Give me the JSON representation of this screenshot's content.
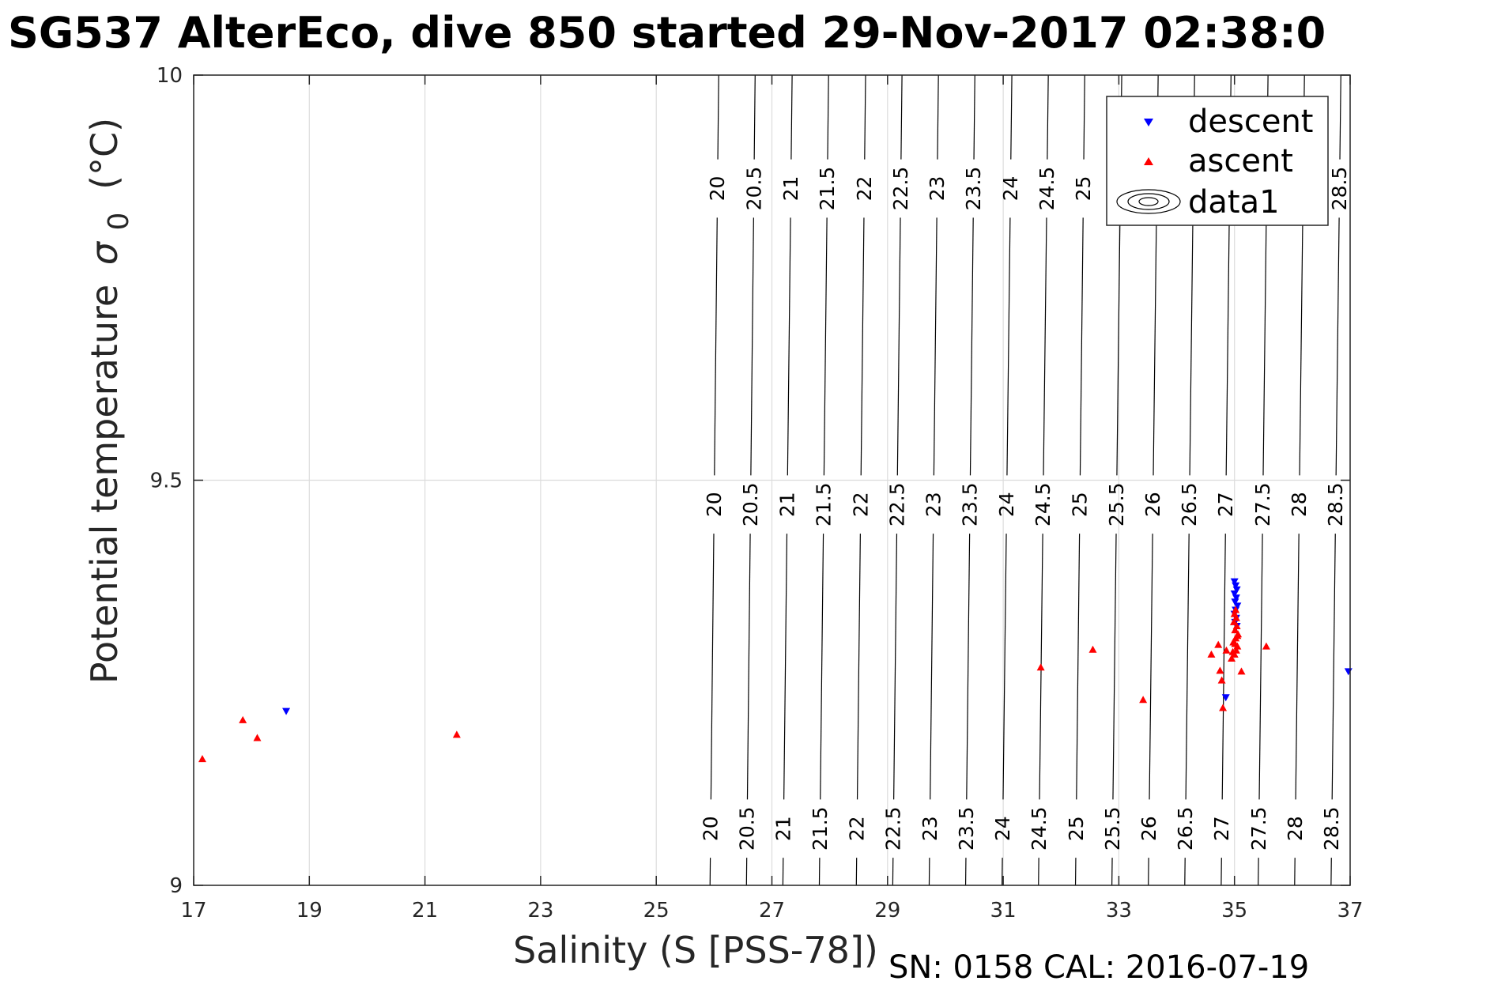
{
  "title": "SG537 AlterEco, dive 850 started 29-Nov-2017 02:38:0",
  "footer": "SN: 0158  CAL: 2016-07-19",
  "colors": {
    "descent": "#0000ff",
    "ascent": "#ff0000",
    "contour": "#000000",
    "grid": "#dcdcdc",
    "axis": "#262626"
  },
  "chart_data": {
    "type": "scatter",
    "xlabel": "Salinity (S [PSS-78])",
    "ylabel": "Potential temperature",
    "ylabel_symbol": "σ",
    "ylabel_subscript": "0",
    "ylabel_unit": "(°C)",
    "xlim": [
      17,
      37
    ],
    "ylim": [
      9,
      10
    ],
    "xticks": [
      17,
      19,
      21,
      23,
      25,
      27,
      29,
      31,
      33,
      35,
      37
    ],
    "yticks": [
      9,
      9.5,
      10
    ],
    "xtick_labels": [
      "17",
      "19",
      "21",
      "23",
      "25",
      "27",
      "29",
      "31",
      "33",
      "35",
      "37"
    ],
    "ytick_labels": [
      "9",
      "9.5",
      "10"
    ],
    "grid": true,
    "legend_position": "top-right",
    "legend": [
      "descent",
      "ascent",
      "data1"
    ],
    "series": [
      {
        "name": "descent",
        "marker": "triangle-down",
        "color": "#0000ff",
        "x": [
          18.6,
          34.85,
          36.97,
          35.0,
          35.02,
          35.04,
          35.0,
          35.03,
          35.01,
          35.05,
          35.02,
          35.0,
          35.03,
          35.01,
          35.04
        ],
        "y": [
          9.215,
          9.232,
          9.264,
          9.375,
          9.37,
          9.365,
          9.36,
          9.355,
          9.35,
          9.345,
          9.34,
          9.335,
          9.33,
          9.325,
          9.32
        ]
      },
      {
        "name": "ascent",
        "marker": "triangle-up",
        "color": "#ff0000",
        "x": [
          17.15,
          17.85,
          18.1,
          21.55,
          31.65,
          32.55,
          33.42,
          34.6,
          34.72,
          34.75,
          34.78,
          34.8,
          34.86,
          35.12,
          35.55,
          34.95,
          35.0,
          35.03,
          35.05,
          34.98,
          35.02,
          35.06,
          35.01,
          35.04,
          34.99,
          35.03,
          35.0,
          35.02,
          34.97,
          35.01,
          35.05
        ],
        "y": [
          9.156,
          9.204,
          9.182,
          9.186,
          9.269,
          9.291,
          9.229,
          9.285,
          9.297,
          9.265,
          9.253,
          9.219,
          9.29,
          9.264,
          9.295,
          9.28,
          9.285,
          9.29,
          9.295,
          9.3,
          9.305,
          9.31,
          9.315,
          9.32,
          9.325,
          9.33,
          9.335,
          9.34,
          9.288,
          9.298,
          9.308
        ]
      }
    ],
    "contours": {
      "name": "data1",
      "levels": [
        "20",
        "20.5",
        "21",
        "21.5",
        "22",
        "22.5",
        "23",
        "23.5",
        "24",
        "24.5",
        "25",
        "25.5",
        "26",
        "26.5",
        "27",
        "27.5",
        "28",
        "28.5"
      ],
      "salinity_at_bottom": [
        25.93,
        26.56,
        27.19,
        27.82,
        28.46,
        29.09,
        29.72,
        30.35,
        30.98,
        31.61,
        32.25,
        32.88,
        33.51,
        34.14,
        34.77,
        35.41,
        36.04,
        36.67
      ],
      "salinity_at_top": [
        26.08,
        26.71,
        27.35,
        27.98,
        28.62,
        29.25,
        29.88,
        30.51,
        31.15,
        31.78,
        32.41,
        33.05,
        33.68,
        34.31,
        34.94,
        35.58,
        36.21,
        36.84
      ],
      "label_rows_temperature": [
        9.07,
        9.47,
        9.86
      ],
      "top_row_levels": [
        "20",
        "20.5",
        "21",
        "21.5",
        "22",
        "22.5",
        "23",
        "23.5",
        "24",
        "24.5",
        "25",
        "28.5"
      ]
    }
  }
}
